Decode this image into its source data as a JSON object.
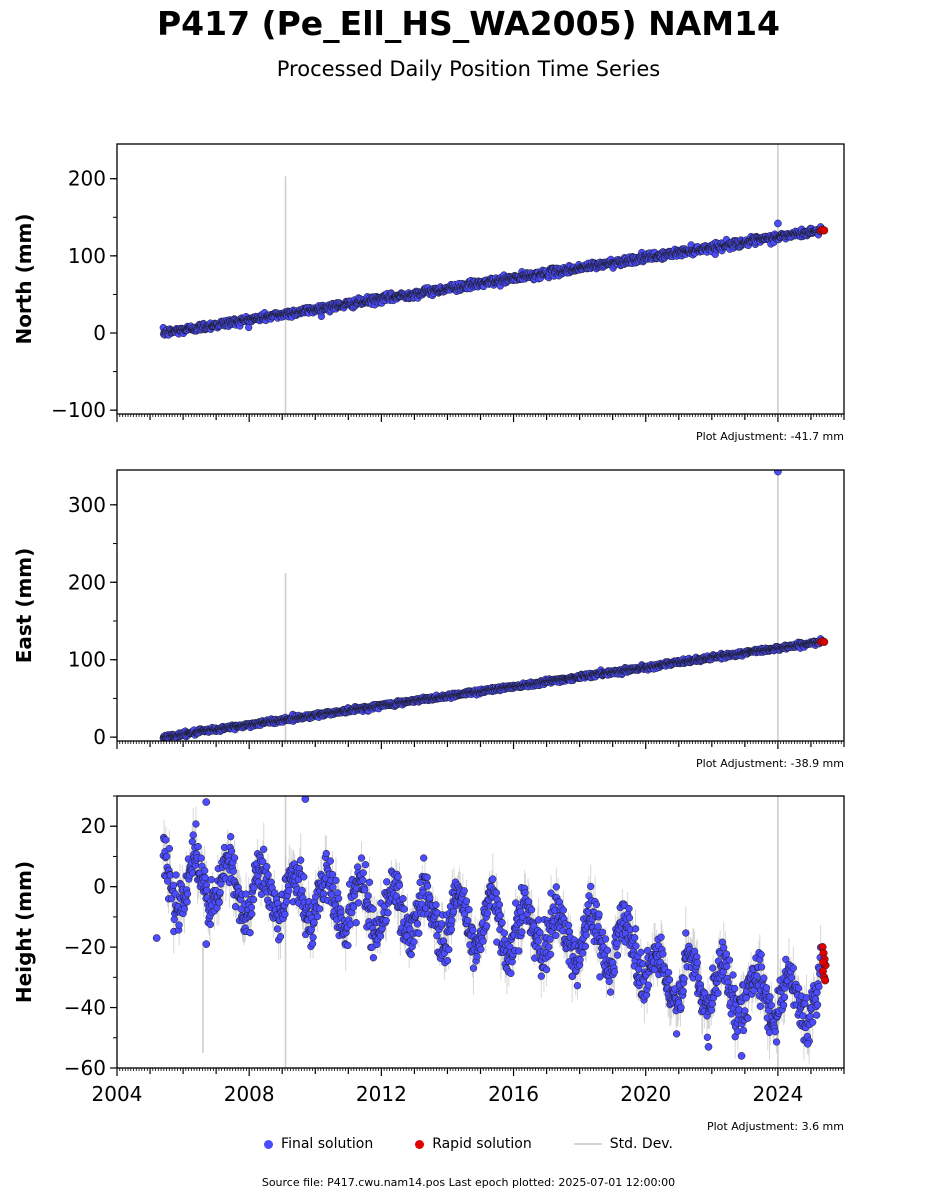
{
  "header": {
    "title": "P417 (Pe_Ell_HS_WA2005) NAM14",
    "subtitle": "Processed Daily Position Time Series"
  },
  "legend": {
    "final": "Final solution",
    "rapid": "Rapid solution",
    "std": "Std. Dev."
  },
  "footer": {
    "source": "Source file: P417.cwu.nam14.pos  Last epoch plotted: 2025-07-01 12:00:00"
  },
  "colors": {
    "final": "#4b4bff",
    "rapid": "#e00000",
    "std": "#b0b0b0",
    "marker_edge": "#1a1a1a"
  },
  "chart_data": [
    {
      "type": "scatter",
      "ylabel": "North (mm)",
      "adjustment": "Plot Adjustment: -41.7 mm",
      "xlim": [
        2004.0,
        2026.0
      ],
      "ylim": [
        -105,
        245
      ],
      "yticks": [
        -100,
        0,
        100,
        200
      ],
      "xticks": [
        2004,
        2008,
        2012,
        2016,
        2020,
        2024
      ],
      "show_xticklabels": false,
      "trend": {
        "start": [
          2005.4,
          0
        ],
        "end": [
          2025.3,
          133
        ]
      },
      "noise_mm": 2.5,
      "outliers": [
        [
          2024.0,
          142
        ]
      ],
      "vertical_lines": [
        {
          "x": 2009.1,
          "y0": -105,
          "y1": 203
        },
        {
          "x": 2024.0,
          "y0": -105,
          "y1": 245
        }
      ],
      "rapid": [
        [
          2025.3,
          133
        ],
        [
          2025.35,
          134
        ],
        [
          2025.4,
          133
        ]
      ]
    },
    {
      "type": "scatter",
      "ylabel": "East (mm)",
      "adjustment": "Plot Adjustment: -38.9 mm",
      "xlim": [
        2004.0,
        2026.0
      ],
      "ylim": [
        -5,
        345
      ],
      "yticks": [
        0,
        100,
        200,
        300
      ],
      "xticks": [
        2004,
        2008,
        2012,
        2016,
        2020,
        2024
      ],
      "show_xticklabels": false,
      "trend": {
        "start": [
          2005.4,
          0
        ],
        "end": [
          2025.3,
          123
        ]
      },
      "noise_mm": 1.5,
      "outliers": [
        [
          2024.0,
          343
        ]
      ],
      "vertical_lines": [
        {
          "x": 2009.1,
          "y0": -5,
          "y1": 212
        },
        {
          "x": 2024.0,
          "y0": -5,
          "y1": 345
        }
      ],
      "rapid": [
        [
          2025.3,
          123
        ],
        [
          2025.35,
          124
        ],
        [
          2025.4,
          123
        ]
      ]
    },
    {
      "type": "scatter",
      "ylabel": "Height (mm)",
      "adjustment": "Plot Adjustment: 3.6 mm",
      "xlim": [
        2004.0,
        2026.0
      ],
      "ylim": [
        -60,
        30
      ],
      "yticks": [
        -60,
        -40,
        -20,
        0,
        20
      ],
      "xticks": [
        2004,
        2008,
        2012,
        2016,
        2020,
        2024
      ],
      "show_xticklabels": true,
      "trend": {
        "start": [
          2005.4,
          3
        ],
        "end": [
          2025.3,
          -28
        ]
      },
      "seasonal_amplitude_mm": 8,
      "noise_mm": 4,
      "step": {
        "x": 2019.8,
        "offset": -10
      },
      "outliers": [
        [
          2006.7,
          28
        ],
        [
          2009.7,
          29
        ],
        [
          2021.9,
          -53
        ],
        [
          2022.9,
          -56
        ],
        [
          2024.9,
          -52
        ],
        [
          2006.7,
          -19
        ],
        [
          2005.2,
          -17
        ]
      ],
      "vertical_lines": [
        {
          "x": 2009.1,
          "y0": -60,
          "y1": 30
        },
        {
          "x": 2024.0,
          "y0": -60,
          "y1": 30
        },
        {
          "x": 2006.6,
          "y0": -55,
          "y1": -20
        }
      ],
      "rapid": [
        [
          2025.35,
          -20
        ],
        [
          2025.38,
          -22
        ],
        [
          2025.41,
          -24
        ],
        [
          2025.44,
          -26
        ],
        [
          2025.36,
          -28
        ],
        [
          2025.4,
          -30
        ],
        [
          2025.43,
          -31
        ],
        [
          2025.37,
          -25
        ]
      ]
    }
  ]
}
